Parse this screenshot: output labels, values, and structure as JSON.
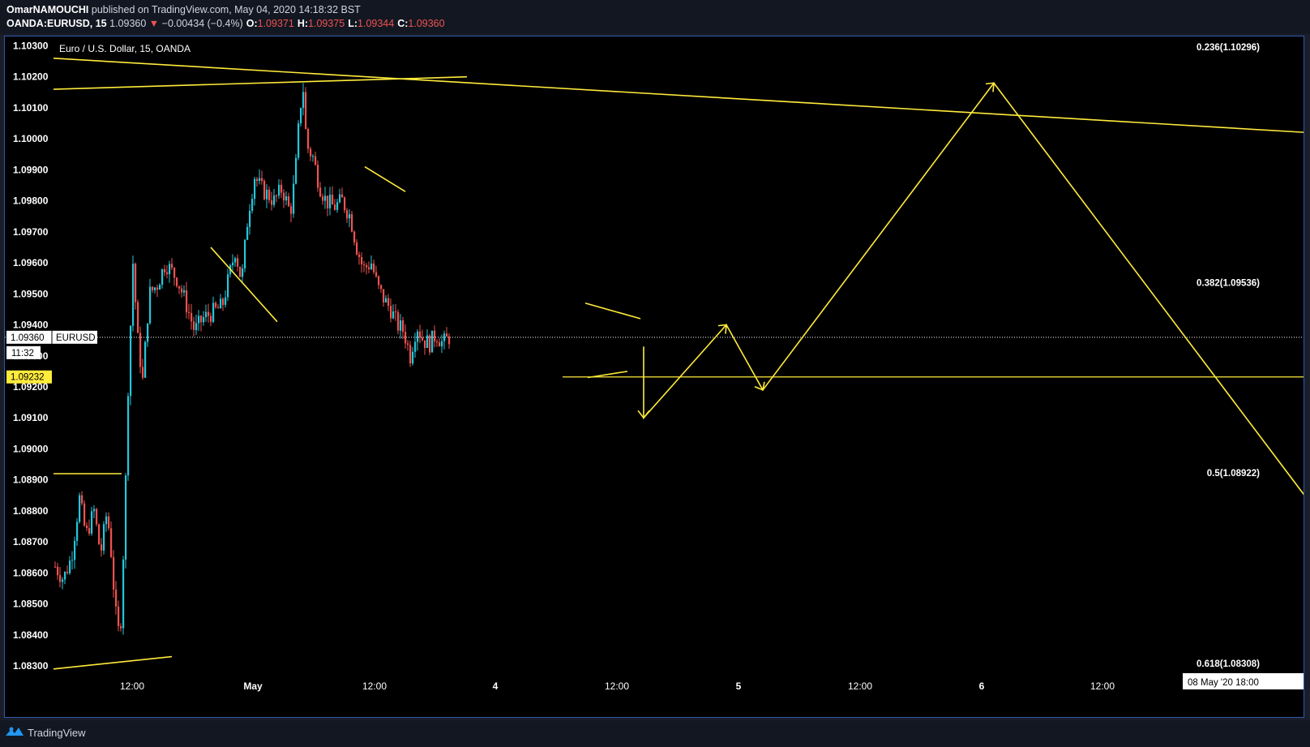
{
  "header": {
    "author": "OmarNAMOUCHI",
    "published_text": " published on TradingView.com, May 04, 2020 14:18:32 BST",
    "symbol": "OANDA:EURUSD, 15",
    "last_price": "1.09360",
    "change": "−0.00434 (−0.4%)",
    "open_label": "O:",
    "open_value": "1.09371",
    "high_label": "H:",
    "high_value": "1.09375",
    "low_label": "L:",
    "low_value": "1.09344",
    "close_label": "C:",
    "close_value": "1.09360"
  },
  "footer": {
    "brand": "TradingView"
  },
  "colors": {
    "background": "#000000",
    "frame": "#2e5aa8",
    "up_candle": "#26c6da",
    "down_candle": "#ef5350",
    "drawing": "#ffeb3b",
    "text": "#ffffff"
  },
  "chart_data": {
    "type": "candlestick",
    "title": "Euro / U.S. Dollar, 15, OANDA",
    "yticks": [
      "1.10300",
      "1.10200",
      "1.10100",
      "1.10000",
      "1.09900",
      "1.09800",
      "1.09700",
      "1.09600",
      "1.09500",
      "1.09400",
      "1.09300",
      "1.09200",
      "1.09100",
      "1.09000",
      "1.08900",
      "1.08800",
      "1.08700",
      "1.08600",
      "1.08500",
      "1.08400",
      "1.08300"
    ],
    "ylim": [
      1.0828,
      1.1033
    ],
    "xticks": [
      "12:00",
      "May",
      "12:00",
      "4",
      "12:00",
      "5",
      "12:00",
      "6",
      "12:00"
    ],
    "x_bold_ticks": [
      "May",
      "4",
      "5",
      "6"
    ],
    "price_tags": [
      {
        "name": "current",
        "value": 1.0936,
        "label": "1.09360",
        "symbol": "EURUSD",
        "countdown": "11:32"
      },
      {
        "name": "horizontal-line",
        "value": 1.09232,
        "label": "1.09232"
      }
    ],
    "date_tag": "08 May '20   18:00",
    "fib_levels": [
      {
        "label": "0.236(1.10296)",
        "value": 1.10296
      },
      {
        "label": "0.382(1.09536)",
        "value": 1.09536
      },
      {
        "label": "0.5(1.08922)",
        "value": 1.08922
      },
      {
        "label": "0.618(1.08308)",
        "value": 1.08308
      }
    ],
    "horizontal_line": 1.09232,
    "price_path": [
      [
        0,
        1.0862
      ],
      [
        10,
        1.0858
      ],
      [
        20,
        1.0865
      ],
      [
        30,
        1.0884
      ],
      [
        38,
        1.0872
      ],
      [
        48,
        1.088
      ],
      [
        56,
        1.0866
      ],
      [
        64,
        1.088
      ],
      [
        70,
        1.0864
      ],
      [
        74,
        1.0848
      ],
      [
        80,
        1.0838
      ],
      [
        86,
        1.088
      ],
      [
        90,
        1.092
      ],
      [
        96,
        1.096
      ],
      [
        102,
        1.0935
      ],
      [
        108,
        1.0922
      ],
      [
        116,
        1.095
      ],
      [
        126,
        1.0953
      ],
      [
        136,
        1.096
      ],
      [
        150,
        1.0955
      ],
      [
        160,
        1.0948
      ],
      [
        172,
        1.0938
      ],
      [
        182,
        1.0942
      ],
      [
        194,
        1.0944
      ],
      [
        206,
        1.0946
      ],
      [
        214,
        1.0955
      ],
      [
        222,
        1.0964
      ],
      [
        230,
        1.0954
      ],
      [
        238,
        1.0976
      ],
      [
        246,
        1.0988
      ],
      [
        254,
        1.0984
      ],
      [
        262,
        1.0982
      ],
      [
        270,
        1.098
      ],
      [
        280,
        1.0984
      ],
      [
        290,
        1.0976
      ],
      [
        296,
        1.0988
      ],
      [
        302,
        1.101
      ],
      [
        306,
        1.1016
      ],
      [
        310,
        1.0998
      ],
      [
        318,
        1.0994
      ],
      [
        326,
        1.0985
      ],
      [
        334,
        1.098
      ],
      [
        344,
        1.0978
      ],
      [
        354,
        1.098
      ],
      [
        364,
        1.0975
      ],
      [
        372,
        1.0965
      ],
      [
        380,
        1.0958
      ],
      [
        390,
        1.096
      ],
      [
        398,
        1.0952
      ],
      [
        406,
        1.0948
      ],
      [
        414,
        1.0945
      ],
      [
        422,
        1.094
      ],
      [
        430,
        1.0938
      ],
      [
        438,
        1.093
      ],
      [
        446,
        1.094
      ],
      [
        454,
        1.0935
      ],
      [
        462,
        1.0934
      ],
      [
        470,
        1.0937
      ],
      [
        478,
        1.0934
      ],
      [
        486,
        1.0936
      ]
    ],
    "drawings": [
      {
        "name": "upper-resistance-trendline",
        "points": [
          [
            0,
            1.1026
          ],
          [
            1549,
            1.1002
          ]
        ]
      },
      {
        "name": "top-support-trendline",
        "points": [
          [
            0,
            1.1016
          ],
          [
            510,
            1.102
          ]
        ]
      },
      {
        "name": "left-resistance-line",
        "points": [
          [
            0,
            1.0892
          ],
          [
            84,
            1.0892
          ]
        ]
      },
      {
        "name": "bottom-support-trendline",
        "points": [
          [
            0,
            1.0829
          ],
          [
            146,
            1.0833
          ]
        ]
      },
      {
        "name": "flag-line-1",
        "points": [
          [
            194,
            1.0965
          ],
          [
            276,
            1.0941
          ]
        ]
      },
      {
        "name": "flag-line-2",
        "points": [
          [
            384,
            1.0991
          ],
          [
            434,
            1.0983
          ]
        ]
      },
      {
        "name": "triangle-top-line",
        "points": [
          [
            656,
            1.0947
          ],
          [
            724,
            1.0942
          ]
        ]
      },
      {
        "name": "triangle-bottom-line",
        "points": [
          [
            659,
            1.0923
          ],
          [
            708,
            1.0925
          ]
        ]
      },
      {
        "name": "projected-zigzag-path",
        "points": [
          [
            728,
            1.0933
          ],
          [
            728,
            1.091
          ],
          [
            830,
            1.094
          ],
          [
            875,
            1.0919
          ],
          [
            1160,
            1.1018
          ],
          [
            1549,
            1.0883
          ]
        ]
      }
    ]
  }
}
